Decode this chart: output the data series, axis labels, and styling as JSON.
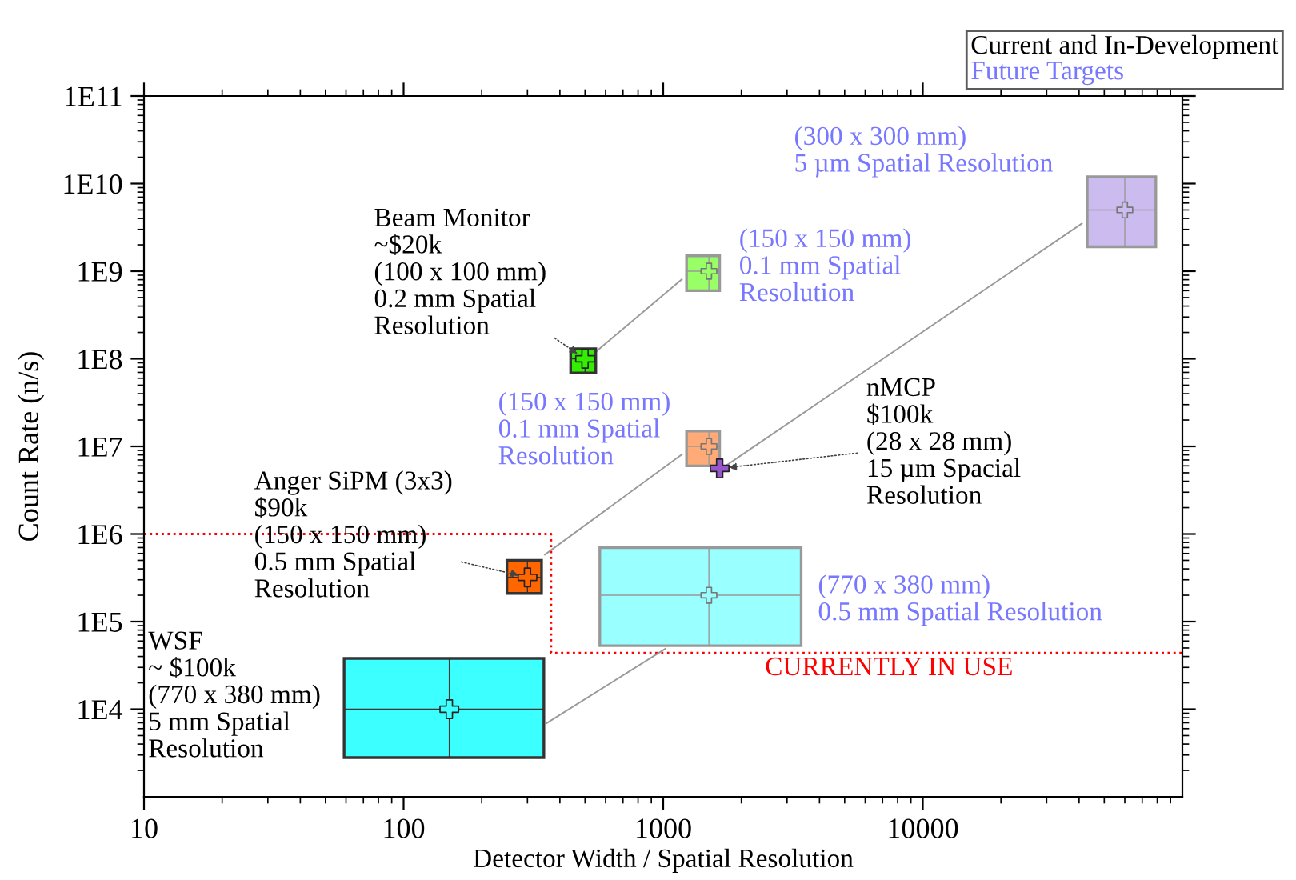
{
  "chart_data": {
    "type": "scatter",
    "xlabel": "Detector Width / Spatial Resolution",
    "ylabel": "Count Rate (n/s)",
    "log": "xy",
    "grid": false,
    "legend": "top right",
    "xlim": [
      10,
      100000
    ],
    "xticks": [
      10,
      100,
      1000,
      10000
    ],
    "ylim": [
      1000,
      100000000000
    ],
    "yticks": [
      {
        "value": 10000,
        "label": "1E4"
      },
      {
        "value": 100000,
        "label": "1E5"
      },
      {
        "value": 1000000,
        "label": "1E6"
      },
      {
        "value": 10000000,
        "label": "1E7"
      },
      {
        "value": 100000000,
        "label": "1E8"
      },
      {
        "value": 1000000000,
        "label": "1E9"
      },
      {
        "value": 10000000000,
        "label": "1E10"
      },
      {
        "value": 100000000000,
        "label": "1E11"
      }
    ],
    "series": [
      {
        "name": "Current and In-Development",
        "color": "#000000",
        "marker": "cross",
        "x": [
          150,
          300,
          500,
          1650
        ],
        "values": [
          10000,
          320000,
          100000000,
          5600000
        ],
        "xerrors": [
          [
            59,
            347
          ],
          [
            250,
            340
          ],
          [
            440,
            550
          ],
          [
            1600,
            1700
          ]
        ],
        "errors": [
          [
            2800,
            38000
          ],
          [
            210000,
            500000
          ],
          [
            69000000,
            130000000
          ],
          [
            5300000,
            5900000
          ]
        ],
        "colors": [
          "#3cffff",
          "#ff6600",
          "#33ee00",
          "#9955cc"
        ]
      },
      {
        "name": "Future Targets",
        "color": "#7777ff",
        "marker": "cross",
        "x": [
          1500,
          1500,
          60000,
          1500
        ],
        "values": [
          1000000000,
          10000000,
          5000000000,
          200000
        ],
        "xerrors": [
          [
            1230,
            1650
          ],
          [
            1230,
            1650
          ],
          [
            43000,
            79000
          ],
          [
            570,
            3400
          ]
        ],
        "errors": [
          [
            600000000,
            1500000000
          ],
          [
            6000000,
            15000000
          ],
          [
            1900000000,
            12000000000
          ],
          [
            53000,
            700000
          ]
        ],
        "colors": [
          "#99ff66",
          "#ffaa77",
          "#ccbbee",
          "#99ffff"
        ]
      },
      {
        "type": "line",
        "color": "#ff0000",
        "line_style": "dotted",
        "x": [
          10,
          370,
          370,
          100000
        ],
        "values": [
          1000000,
          1000000,
          44000,
          44000
        ]
      },
      {
        "type": "line",
        "color": "#999999",
        "line_style": "solid",
        "x": [
          355,
          1020
        ],
        "values": [
          6900,
          49000
        ]
      },
      {
        "type": "line",
        "color": "#999999",
        "line_style": "solid",
        "x": [
          350,
          1180
        ],
        "values": [
          580000,
          8100000
        ]
      },
      {
        "type": "line",
        "color": "#999999",
        "line_style": "solid",
        "x": [
          550,
          1180
        ],
        "values": [
          120000000,
          810000000
        ]
      },
      {
        "type": "line",
        "color": "#999999",
        "line_style": "solid",
        "x": [
          1740,
          41000
        ],
        "values": [
          6000000,
          3500000000
        ]
      }
    ],
    "annotations": [
      {
        "text": "Beam Monitor\n~$20k\n(100 x 100 mm)\n0.2 mm Spatial\nResolution",
        "x": 500,
        "y": 100000000
      },
      "(150 x 150 mm)\n0.1 mm Spatial\nResolution",
      "(150 x 150 mm)\n0.1 mm Spatial\nResolution",
      {
        "text": "nMCP\n$100k\n(28 x 28 mm)\n15 µm Spacial\nResolution",
        "x": 1650,
        "y": 5600000
      },
      {
        "text": "Anger SiPM (3x3)\n$90k\n(150 x 150 mm)\n0.5 mm Spatial\nResolution",
        "x": 300,
        "y": 320000
      },
      "WSF\n~ $100k\n(770 x 380 mm)\n5 mm Spatial\nResolution",
      "(770 x 380 mm)\n0.5 mm Spatial Resolution",
      "(300 x 300 mm)\n5 µm Spatial Resolution",
      "CURRENTLY IN USE"
    ]
  }
}
